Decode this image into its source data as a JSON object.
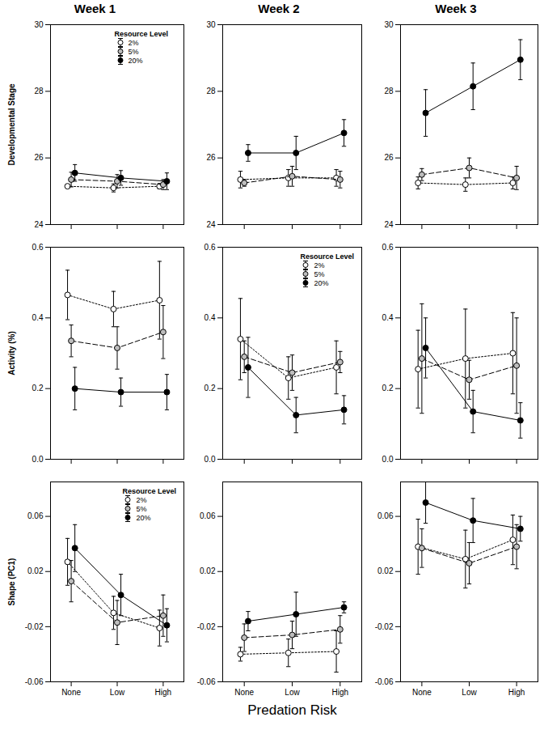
{
  "chart_data": [
    {
      "type": "line",
      "title": "Week 1",
      "y_label": "Developmental Stage",
      "categories": [
        "None",
        "Low",
        "High"
      ],
      "ylim": [
        24,
        30
      ],
      "yticks": [
        24,
        26,
        28,
        30
      ],
      "tick_labels": "y",
      "legend": "top",
      "legend_title": "Resource Level",
      "series": [
        {
          "name": "2%",
          "color": "#ffffff",
          "line_style": "dotted",
          "marker": "circle",
          "values": [
            25.15,
            25.1,
            25.15
          ],
          "errors": [
            0.05,
            0.12,
            0.08
          ]
        },
        {
          "name": "5%",
          "color": "#bdbdbd",
          "line_style": "dashed",
          "marker": "circle",
          "values": [
            25.35,
            25.3,
            25.2
          ],
          "errors": [
            0.22,
            0.2,
            0.15
          ]
        },
        {
          "name": "20%",
          "color": "#000000",
          "line_style": "solid",
          "marker": "circle",
          "values": [
            25.55,
            25.4,
            25.3
          ],
          "errors": [
            0.25,
            0.22,
            0.25
          ]
        }
      ]
    },
    {
      "type": "line",
      "title": "Week 2",
      "categories": [
        "None",
        "Low",
        "High"
      ],
      "ylim": [
        24,
        30
      ],
      "yticks": [
        24,
        26,
        28,
        30
      ],
      "tick_labels": "y",
      "series": [
        {
          "name": "2%",
          "color": "#ffffff",
          "line_style": "dotted",
          "marker": "circle",
          "values": [
            25.35,
            25.4,
            25.4
          ],
          "errors": [
            0.25,
            0.25,
            0.25
          ]
        },
        {
          "name": "5%",
          "color": "#bdbdbd",
          "line_style": "dashed",
          "marker": "circle",
          "values": [
            25.25,
            25.45,
            25.35
          ],
          "errors": [
            0.1,
            0.3,
            0.25
          ]
        },
        {
          "name": "20%",
          "color": "#000000",
          "line_style": "solid",
          "marker": "circle",
          "values": [
            26.15,
            26.15,
            26.75
          ],
          "errors": [
            0.25,
            0.5,
            0.4
          ]
        }
      ]
    },
    {
      "type": "line",
      "title": "Week 3",
      "categories": [
        "None",
        "Low",
        "High"
      ],
      "ylim": [
        24,
        30
      ],
      "yticks": [
        24,
        26,
        28,
        30
      ],
      "tick_labels": "y",
      "series": [
        {
          "name": "2%",
          "color": "#ffffff",
          "line_style": "dotted",
          "marker": "circle",
          "values": [
            25.25,
            25.2,
            25.25
          ],
          "errors": [
            0.18,
            0.2,
            0.18
          ]
        },
        {
          "name": "5%",
          "color": "#bdbdbd",
          "line_style": "dashed",
          "marker": "circle",
          "values": [
            25.5,
            25.7,
            25.4
          ],
          "errors": [
            0.18,
            0.3,
            0.35
          ]
        },
        {
          "name": "20%",
          "color": "#000000",
          "line_style": "solid",
          "marker": "circle",
          "values": [
            27.35,
            28.15,
            28.95
          ],
          "errors": [
            0.7,
            0.7,
            0.6
          ]
        }
      ]
    },
    {
      "type": "line",
      "y_label": "Activity (%)",
      "categories": [
        "None",
        "Low",
        "High"
      ],
      "ylim": [
        0,
        0.6
      ],
      "yticks": [
        {
          "value": 0,
          "label": "0.0"
        },
        0.2,
        0.4,
        0.6
      ],
      "tick_labels": "y",
      "series": [
        {
          "name": "2%",
          "color": "#ffffff",
          "line_style": "dotted",
          "marker": "circle",
          "values": [
            0.465,
            0.425,
            0.45
          ],
          "errors": [
            0.07,
            0.05,
            0.11
          ]
        },
        {
          "name": "5%",
          "color": "#bdbdbd",
          "line_style": "dashed",
          "marker": "circle",
          "values": [
            0.335,
            0.315,
            0.36
          ],
          "errors": [
            0.045,
            0.06,
            0.075
          ]
        },
        {
          "name": "20%",
          "color": "#000000",
          "line_style": "solid",
          "marker": "circle",
          "values": [
            0.2,
            0.19,
            0.19
          ],
          "errors": [
            0.06,
            0.04,
            0.05
          ]
        }
      ]
    },
    {
      "type": "line",
      "categories": [
        "None",
        "Low",
        "High"
      ],
      "ylim": [
        0,
        0.6
      ],
      "yticks": [
        {
          "value": 0,
          "label": "0.0"
        },
        0.2,
        0.4,
        0.6
      ],
      "tick_labels": "y",
      "legend": "top-right",
      "legend_title": "Resource Level",
      "series": [
        {
          "name": "2%",
          "color": "#ffffff",
          "line_style": "dotted",
          "marker": "circle",
          "values": [
            0.34,
            0.23,
            0.26
          ],
          "errors": [
            0.115,
            0.06,
            0.075
          ]
        },
        {
          "name": "5%",
          "color": "#bdbdbd",
          "line_style": "dashed",
          "marker": "circle",
          "values": [
            0.29,
            0.245,
            0.275
          ],
          "errors": [
            0.045,
            0.05,
            0.03
          ]
        },
        {
          "name": "20%",
          "color": "#000000",
          "line_style": "solid",
          "marker": "circle",
          "values": [
            0.26,
            0.125,
            0.14
          ],
          "errors": [
            0.085,
            0.05,
            0.04
          ]
        }
      ]
    },
    {
      "type": "line",
      "categories": [
        "None",
        "Low",
        "High"
      ],
      "ylim": [
        0,
        0.6
      ],
      "yticks": [
        {
          "value": 0,
          "label": "0.0"
        },
        0.2,
        0.4,
        0.6
      ],
      "tick_labels": "y",
      "series": [
        {
          "name": "2%",
          "color": "#ffffff",
          "line_style": "dotted",
          "marker": "circle",
          "values": [
            0.255,
            0.285,
            0.3
          ],
          "errors": [
            0.11,
            0.14,
            0.115
          ]
        },
        {
          "name": "5%",
          "color": "#bdbdbd",
          "line_style": "dashed",
          "marker": "circle",
          "values": [
            0.285,
            0.225,
            0.265
          ],
          "errors": [
            0.155,
            0.055,
            0.135
          ]
        },
        {
          "name": "20%",
          "color": "#000000",
          "line_style": "solid",
          "marker": "circle",
          "values": [
            0.315,
            0.135,
            0.11
          ],
          "errors": [
            0.085,
            0.06,
            0.05
          ]
        }
      ]
    },
    {
      "type": "line",
      "y_label": "Shape (PC1)",
      "categories": [
        "None",
        "Low",
        "High"
      ],
      "ylim": [
        -0.06,
        0.085
      ],
      "yticks": [
        -0.06,
        -0.02,
        0.02,
        0.06
      ],
      "legend": "top-right",
      "legend_title": "Resource Level",
      "series": [
        {
          "name": "2%",
          "color": "#ffffff",
          "line_style": "dotted",
          "marker": "circle",
          "values": [
            0.027,
            -0.01,
            -0.021
          ],
          "errors": [
            0.017,
            0.012,
            0.013
          ]
        },
        {
          "name": "5%",
          "color": "#bdbdbd",
          "line_style": "dashed",
          "marker": "circle",
          "values": [
            0.013,
            -0.017,
            -0.012
          ],
          "errors": [
            0.015,
            0.016,
            0.015
          ]
        },
        {
          "name": "20%",
          "color": "#000000",
          "line_style": "solid",
          "marker": "circle",
          "values": [
            0.037,
            0.003,
            -0.019
          ],
          "errors": [
            0.017,
            0.015,
            0.012
          ]
        }
      ]
    },
    {
      "type": "line",
      "x_label": "Predation Risk",
      "categories": [
        "None",
        "Low",
        "High"
      ],
      "ylim": [
        -0.06,
        0.085
      ],
      "yticks": [
        -0.06,
        -0.02,
        0.02,
        0.06
      ],
      "series": [
        {
          "name": "2%",
          "color": "#ffffff",
          "line_style": "dotted",
          "marker": "circle",
          "values": [
            -0.04,
            -0.039,
            -0.038
          ],
          "errors": [
            0.005,
            0.01,
            0.015
          ]
        },
        {
          "name": "5%",
          "color": "#bdbdbd",
          "line_style": "dashed",
          "marker": "circle",
          "values": [
            -0.028,
            -0.026,
            -0.022
          ],
          "errors": [
            0.01,
            0.01,
            0.01
          ]
        },
        {
          "name": "20%",
          "color": "#000000",
          "line_style": "solid",
          "marker": "circle",
          "values": [
            -0.016,
            -0.011,
            -0.006
          ],
          "errors": [
            0.007,
            0.016,
            0.004
          ]
        }
      ]
    },
    {
      "type": "line",
      "categories": [
        "None",
        "Low",
        "High"
      ],
      "ylim": [
        -0.06,
        0.085
      ],
      "yticks": [
        -0.06,
        -0.02,
        0.02,
        0.06
      ],
      "series": [
        {
          "name": "2%",
          "color": "#ffffff",
          "line_style": "dotted",
          "marker": "circle",
          "values": [
            0.038,
            0.029,
            0.043
          ],
          "errors": [
            0.02,
            0.021,
            0.018
          ]
        },
        {
          "name": "5%",
          "color": "#bdbdbd",
          "line_style": "dashed",
          "marker": "circle",
          "values": [
            0.037,
            0.026,
            0.038
          ],
          "errors": [
            0.014,
            0.015,
            0.016
          ]
        },
        {
          "name": "20%",
          "color": "#000000",
          "line_style": "solid",
          "marker": "circle",
          "values": [
            0.07,
            0.057,
            0.051
          ],
          "errors": [
            0.015,
            0.016,
            0.009
          ]
        }
      ]
    }
  ]
}
